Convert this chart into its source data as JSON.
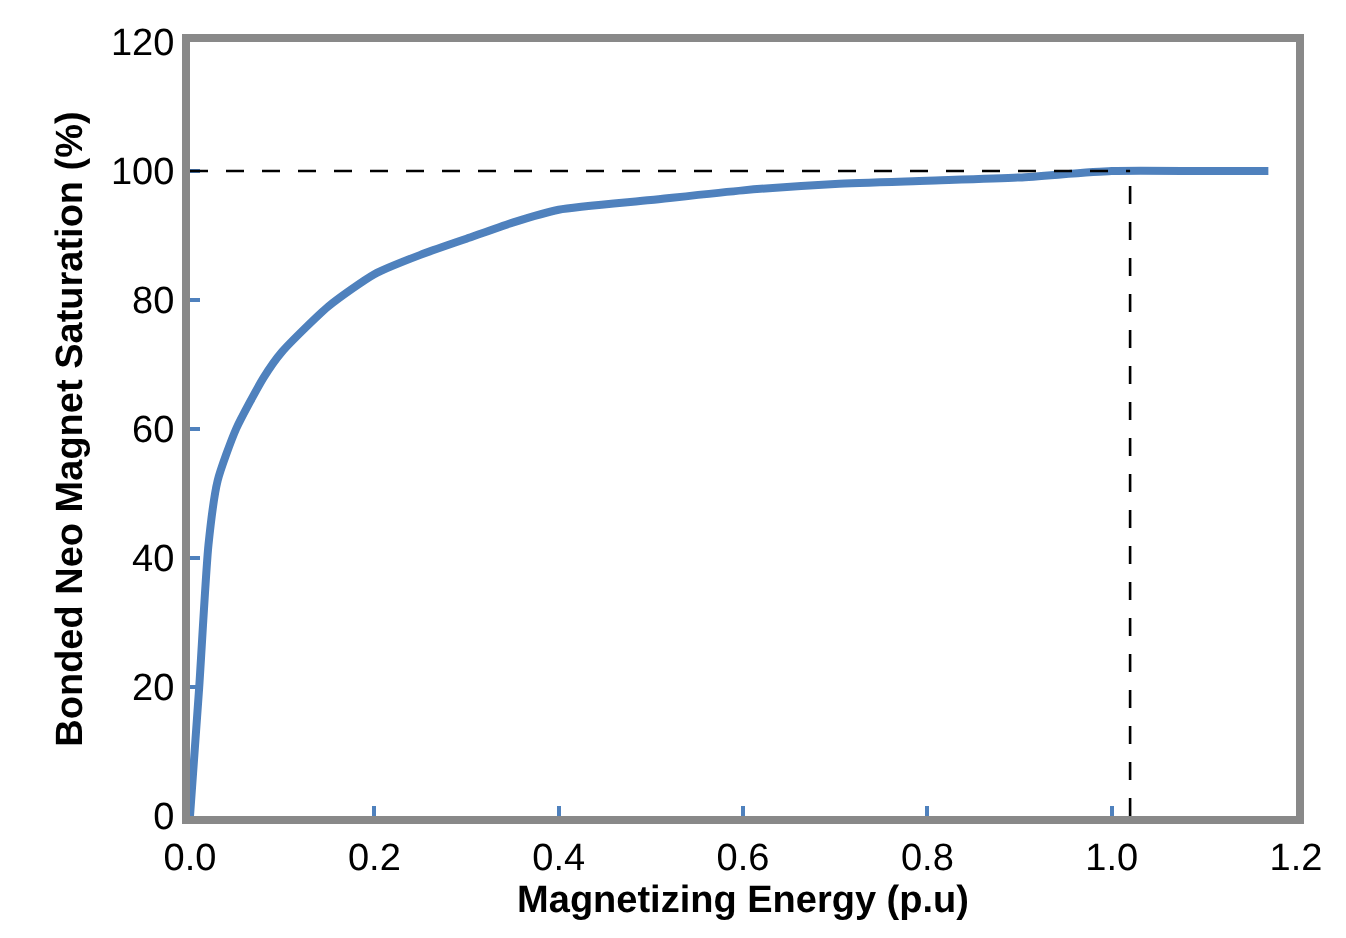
{
  "chart_data": {
    "type": "line",
    "xlabel": "Magnetizing Energy (p.u)",
    "ylabel": "Bonded Neo Magnet Saturation (%)",
    "x": [
      0,
      0.01,
      0.02,
      0.03,
      0.05,
      0.08,
      0.1,
      0.15,
      0.2,
      0.25,
      0.3,
      0.35,
      0.4,
      0.5,
      0.6,
      0.7,
      0.8,
      0.9,
      1.0,
      1.1,
      1.17
    ],
    "series": [
      {
        "color": "#4f81bd",
        "values": [
          0,
          20,
          42,
          52,
          60,
          68,
          72,
          79,
          84,
          87,
          89.5,
          92,
          94,
          95.5,
          97,
          98,
          98.5,
          99,
          100,
          100,
          100
        ]
      }
    ],
    "xlim": [
      0,
      1.2
    ],
    "xticks": [
      {
        "value": 0,
        "label": "0.0"
      },
      0.2,
      0.4,
      0.6,
      0.8,
      {
        "value": 1,
        "label": "1.0"
      },
      {
        "value": 1.2,
        "label": "1.2"
      }
    ],
    "ylim": [
      0,
      120
    ],
    "yticks": [
      0,
      20,
      40,
      60,
      80,
      100,
      120
    ],
    "ref_lines": [
      {
        "axis": "y",
        "value": 100,
        "color": "#000000",
        "line_style": "dashed"
      },
      {
        "axis": "x",
        "value": 1.02,
        "color": "#000000",
        "line_style": "dashed"
      }
    ],
    "marker": "none",
    "line_style": "solid"
  }
}
